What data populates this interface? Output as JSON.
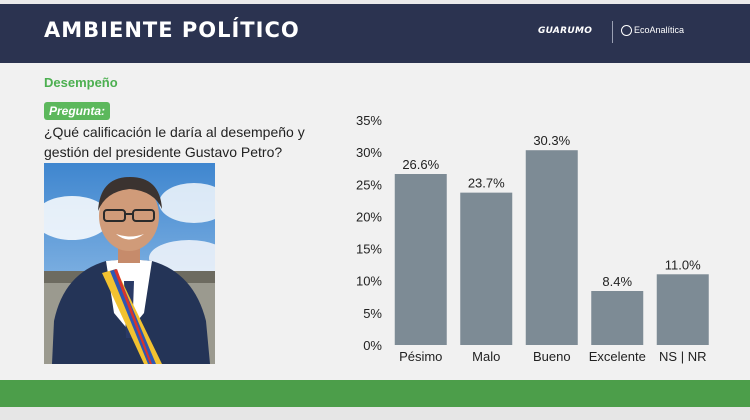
{
  "header": {
    "title": "AMBIENTE POLÍTICO",
    "brand_primary": "GUARUMO",
    "brand_secondary": "EcoAnalítica"
  },
  "section_title": "Desempeño",
  "question_label": "Pregunta:",
  "question_text": "¿Qué calificación le daría al desempeño y gestión del presidente Gustavo Petro?",
  "colors": {
    "header_bg": "#2b3350",
    "accent_green": "#4c9e4a",
    "bar": "#7d8b95"
  },
  "chart_data": {
    "type": "bar",
    "categories": [
      "Pésimo",
      "Malo",
      "Bueno",
      "Excelente",
      "NS | NR"
    ],
    "values": [
      26.6,
      23.7,
      30.3,
      8.4,
      11.0
    ],
    "value_labels": [
      "26.6%",
      "23.7%",
      "30.3%",
      "8.4%",
      "11.0%"
    ],
    "ylim": [
      0,
      35
    ],
    "yticks": [
      0,
      5,
      10,
      15,
      20,
      25,
      30,
      35
    ],
    "ytick_labels": [
      "0%",
      "5%",
      "10%",
      "15%",
      "20%",
      "25%",
      "30%",
      "35%"
    ],
    "grid": false,
    "legend": false
  }
}
